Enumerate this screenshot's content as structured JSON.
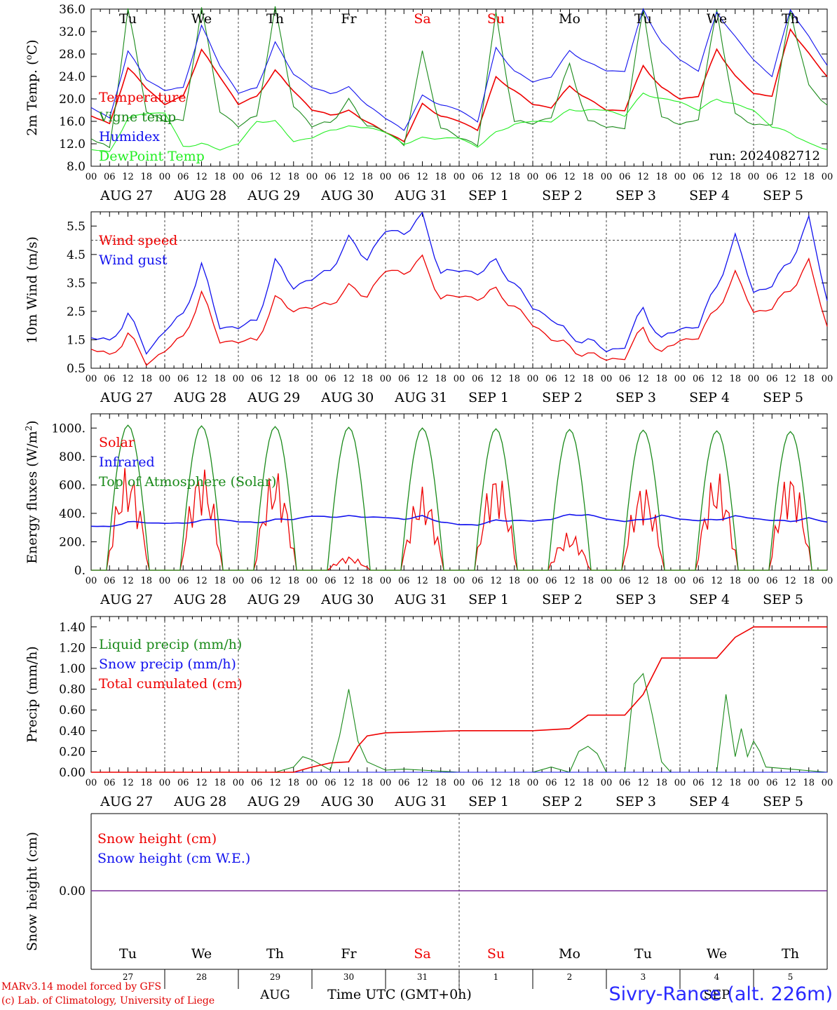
{
  "footer": {
    "model_line": "MARv3.14 model forced by GFS",
    "credit_line": "(c) Lab. of Climatology, University of Liege",
    "station": "Sivry-Rance (alt. 226m)"
  },
  "colors": {
    "red": "#ee0000",
    "green": "#1a8a1a",
    "blue": "#1010ee",
    "lightgreen": "#22ee22",
    "purple": "#7a2a9a"
  },
  "chart_data": [
    {
      "type": "line",
      "ylabel_parts": [
        "2m Temp. (",
        "o",
        "C)"
      ],
      "ylim": [
        8,
        36
      ],
      "yticks": [
        "8.0",
        "12.0",
        "16.0",
        "20.0",
        "24.0",
        "28.0",
        "32.0",
        "36.0"
      ],
      "day_headers": [
        "Tu",
        "We",
        "Th",
        "Fr",
        "Sa",
        "Su",
        "Mo",
        "Tu",
        "We",
        "Th"
      ],
      "run_label": "run: 2024082712",
      "series": [
        {
          "name": "Temperature",
          "color": "red",
          "x": [
            0,
            6,
            12,
            18,
            24,
            30,
            36,
            42,
            48,
            54,
            60,
            66,
            72,
            78,
            84,
            90,
            96,
            102,
            108,
            114,
            120,
            126,
            132,
            138,
            144,
            150,
            156,
            162,
            168,
            174,
            180,
            186,
            192,
            198,
            204,
            210,
            216,
            222,
            228,
            234,
            240
          ],
          "values": [
            17,
            15.5,
            25.5,
            22,
            19,
            20.5,
            28.7,
            24,
            19,
            20.5,
            25,
            21.5,
            18,
            17.2,
            17.8,
            16,
            14,
            12.5,
            19,
            17,
            16,
            14.5,
            23.8,
            21.5,
            19,
            18.5,
            22.2,
            20,
            18,
            18,
            25.9,
            22,
            20,
            20.5,
            28.9,
            24,
            21,
            20.5,
            32.5,
            28,
            24
          ]
        },
        {
          "name": "Vigne temp",
          "color": "green",
          "x": [
            0,
            6,
            12,
            18,
            24,
            30,
            36,
            42,
            48,
            54,
            60,
            66,
            72,
            78,
            84,
            90,
            96,
            102,
            108,
            114,
            120,
            126,
            132,
            138,
            144,
            150,
            156,
            162,
            168,
            174,
            180,
            186,
            192,
            198,
            204,
            210,
            216,
            222,
            228,
            234,
            240
          ],
          "values": [
            13,
            11,
            36,
            18,
            16,
            16,
            36,
            18,
            15,
            17,
            36,
            19,
            15,
            16,
            19.5,
            15.5,
            14,
            12,
            28,
            15,
            13,
            12,
            35,
            16,
            15.5,
            17,
            26,
            16,
            15,
            15,
            36,
            16.5,
            15.5,
            16.5,
            36,
            17,
            15.5,
            15.5,
            36,
            22,
            19
          ]
        },
        {
          "name": "Humidex",
          "color": "blue",
          "x": [
            0,
            6,
            12,
            18,
            24,
            30,
            36,
            42,
            48,
            54,
            60,
            66,
            72,
            78,
            84,
            90,
            96,
            102,
            108,
            114,
            120,
            126,
            132,
            138,
            144,
            150,
            156,
            162,
            168,
            174,
            180,
            186,
            192,
            198,
            204,
            210,
            216,
            222,
            228,
            234,
            240
          ],
          "values": [
            18.5,
            16.5,
            28.5,
            23.5,
            21.5,
            22,
            33,
            26,
            21,
            22,
            30,
            24.5,
            22,
            21,
            22,
            19,
            16.5,
            14.5,
            20.5,
            19,
            18,
            16,
            29,
            25,
            23,
            24,
            28.5,
            26.5,
            25,
            25,
            36,
            30,
            27,
            25,
            35.5,
            31,
            27,
            24,
            36,
            31,
            26
          ]
        },
        {
          "name": "DewPoint Temp",
          "color": "lightgreen",
          "x": [
            0,
            6,
            12,
            18,
            24,
            30,
            36,
            42,
            48,
            54,
            60,
            66,
            72,
            78,
            84,
            90,
            96,
            102,
            108,
            114,
            120,
            126,
            132,
            138,
            144,
            150,
            156,
            162,
            168,
            174,
            180,
            186,
            192,
            198,
            204,
            210,
            216,
            222,
            228,
            234,
            240
          ],
          "values": [
            11,
            10.5,
            16.5,
            17.5,
            17.5,
            11.5,
            12,
            11,
            12,
            16,
            16,
            12.5,
            13,
            14.5,
            15,
            15,
            14,
            12,
            13,
            13,
            13,
            11.5,
            14,
            15.5,
            16,
            16,
            18,
            18,
            18,
            17,
            21,
            20,
            19.5,
            18,
            20,
            19,
            18,
            15,
            14,
            12,
            11
          ]
        }
      ]
    },
    {
      "type": "line",
      "ylabel": "10m Wind (m/s)",
      "ylim": [
        0.5,
        6.0
      ],
      "yticks": [
        "0.5",
        "1.5",
        "2.5",
        "3.5",
        "4.5",
        "5.5"
      ],
      "reference_line": 5,
      "series": [
        {
          "name": "Wind speed",
          "color": "red",
          "x": [
            0,
            6,
            12,
            18,
            24,
            30,
            36,
            42,
            48,
            54,
            60,
            66,
            72,
            78,
            84,
            90,
            96,
            102,
            108,
            114,
            120,
            126,
            132,
            138,
            144,
            150,
            156,
            162,
            168,
            174,
            180,
            186,
            192,
            198,
            204,
            210,
            216,
            222,
            228,
            234,
            240
          ],
          "values": [
            1.2,
            0.9,
            1.7,
            0.7,
            1.1,
            1.6,
            3.1,
            1.5,
            1.4,
            1.5,
            2.9,
            2.6,
            2.6,
            2.8,
            3.3,
            3.1,
            3.9,
            3.9,
            4.3,
            3.0,
            3.0,
            3.0,
            3.2,
            2.7,
            2.0,
            1.6,
            1.2,
            1.0,
            0.8,
            0.9,
            1.9,
            1.0,
            1.5,
            1.6,
            2.6,
            3.8,
            2.5,
            2.6,
            3.3,
            4.2,
            2.0
          ]
        },
        {
          "name": "Wind gust",
          "color": "blue",
          "x": [
            0,
            6,
            12,
            18,
            24,
            30,
            36,
            42,
            48,
            54,
            60,
            66,
            72,
            78,
            84,
            90,
            96,
            102,
            108,
            114,
            120,
            126,
            132,
            138,
            144,
            150,
            156,
            162,
            168,
            174,
            180,
            186,
            192,
            198,
            204,
            210,
            216,
            222,
            228,
            234,
            240
          ],
          "values": [
            1.6,
            1.4,
            2.4,
            1.1,
            1.8,
            2.4,
            4.1,
            2.0,
            1.9,
            2.2,
            4.2,
            3.4,
            3.6,
            4.0,
            5.0,
            4.4,
            5.3,
            5.3,
            5.8,
            3.9,
            3.9,
            3.9,
            4.2,
            3.5,
            2.6,
            2.3,
            1.6,
            1.5,
            1.1,
            1.3,
            2.6,
            1.5,
            1.9,
            2.0,
            3.4,
            5.1,
            3.2,
            3.4,
            4.3,
            5.7,
            2.9
          ]
        }
      ]
    },
    {
      "type": "line",
      "ylabel_parts": [
        "Energy fluxes (W/m",
        "2",
        ")"
      ],
      "ylim": [
        0,
        1100
      ],
      "yticks": [
        "0.",
        "200.",
        "400.",
        "600.",
        "800.",
        "1000."
      ],
      "series": [
        {
          "name": "Solar",
          "color": "red",
          "peaks": [
            740,
            750,
            720,
            100,
            590,
            720,
            270,
            630,
            700,
            720
          ]
        },
        {
          "name": "Infrared",
          "color": "blue",
          "x": [
            0,
            6,
            12,
            18,
            24,
            30,
            36,
            42,
            48,
            54,
            60,
            66,
            72,
            78,
            84,
            90,
            96,
            102,
            108,
            114,
            120,
            126,
            132,
            138,
            144,
            150,
            156,
            162,
            168,
            174,
            180,
            186,
            192,
            198,
            204,
            210,
            216,
            222,
            228,
            234,
            240
          ],
          "values": [
            310,
            305,
            340,
            335,
            330,
            330,
            350,
            360,
            340,
            335,
            355,
            360,
            380,
            375,
            380,
            375,
            370,
            360,
            380,
            340,
            320,
            320,
            350,
            350,
            345,
            360,
            390,
            390,
            360,
            345,
            355,
            385,
            360,
            350,
            355,
            380,
            365,
            350,
            345,
            365,
            340
          ]
        },
        {
          "name": "Top of Atmosphere (Solar)",
          "color": "green",
          "peaks": [
            1020,
            1015,
            1010,
            1005,
            1000,
            995,
            990,
            985,
            980,
            975
          ]
        }
      ]
    },
    {
      "type": "line",
      "ylabel": "Precip (mm/h)",
      "ylim": [
        0,
        1.5
      ],
      "yticks": [
        "0.00",
        "0.20",
        "0.40",
        "0.60",
        "0.80",
        "1.00",
        "1.20",
        "1.40"
      ],
      "series": [
        {
          "name": "Liquid precip (mm/h)",
          "color": "green",
          "x": [
            0,
            60,
            66,
            69,
            72,
            78,
            81,
            84,
            87,
            90,
            96,
            102,
            108,
            114,
            120,
            144,
            150,
            156,
            159,
            162,
            165,
            168,
            174,
            177,
            180,
            183,
            186,
            189,
            192,
            204,
            207,
            210,
            212,
            214,
            216,
            218,
            220,
            240
          ],
          "values": [
            0,
            0,
            0.05,
            0.15,
            0.12,
            0.02,
            0.35,
            0.8,
            0.3,
            0.1,
            0.02,
            0.03,
            0.02,
            0.01,
            0,
            0,
            0.05,
            0,
            0.2,
            0.25,
            0.18,
            0,
            0,
            0.85,
            0.95,
            0.55,
            0.1,
            0,
            0,
            0,
            0.75,
            0.15,
            0.42,
            0.15,
            0.3,
            0.2,
            0.05,
            0
          ]
        },
        {
          "name": "Snow precip (mm/h)",
          "color": "blue",
          "x": [
            0,
            240
          ],
          "values": [
            0,
            0
          ]
        },
        {
          "name": "Total cumulated (cm)",
          "color": "red",
          "x": [
            0,
            66,
            72,
            78,
            84,
            87,
            90,
            96,
            108,
            120,
            144,
            156,
            162,
            168,
            174,
            180,
            186,
            192,
            204,
            207,
            210,
            216,
            222,
            240
          ],
          "values": [
            0,
            0,
            0.05,
            0.09,
            0.1,
            0.25,
            0.35,
            0.38,
            0.39,
            0.4,
            0.4,
            0.42,
            0.55,
            0.55,
            0.55,
            0.75,
            1.1,
            1.1,
            1.1,
            1.2,
            1.3,
            1.4,
            1.4,
            1.4
          ]
        }
      ]
    },
    {
      "type": "line",
      "ylabel": "Snow height (cm)",
      "yticks": [
        "0.00"
      ],
      "series": [
        {
          "name": "Snow height (cm)",
          "color": "red",
          "x": [
            0,
            240
          ],
          "values": [
            0,
            0
          ]
        },
        {
          "name": "Snow height (cm W.E.)",
          "color": "blue",
          "x": [
            0,
            240
          ],
          "values": [
            0,
            0
          ]
        }
      ],
      "day_headers": [
        "Tu",
        "We",
        "Th",
        "Fr",
        "Sa",
        "Su",
        "Mo",
        "Tu",
        "We",
        "Th"
      ],
      "day_numbers": [
        "27",
        "28",
        "29",
        "30",
        "31",
        "1",
        "2",
        "3",
        "4",
        "5"
      ],
      "month_labels": [
        "AUG",
        "SEP"
      ],
      "xlabel": "Time UTC (GMT+0h)"
    }
  ],
  "date_labels": [
    "AUG 27",
    "AUG 28",
    "AUG 29",
    "AUG 30",
    "AUG 31",
    "SEP  1",
    "SEP  2",
    "SEP  3",
    "SEP  4",
    "SEP  5"
  ],
  "hour_labels": [
    "00",
    "06",
    "12",
    "18"
  ],
  "weekend_days": [
    "Sa",
    "Su"
  ]
}
